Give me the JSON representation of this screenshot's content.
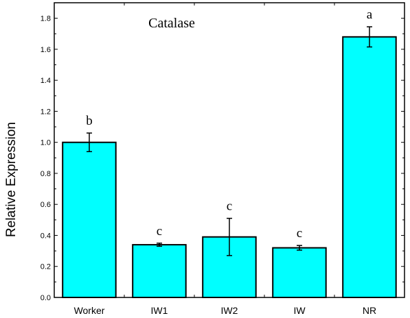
{
  "chart_data": {
    "type": "bar",
    "title": "Catalase",
    "xlabel": "",
    "ylabel": "Relative Expression",
    "ylim": [
      0,
      1.9
    ],
    "yticks": [
      "0.0",
      "0.2",
      "0.4",
      "0.6",
      "0.8",
      "1.0",
      "1.2",
      "1.4",
      "1.6",
      "1.8"
    ],
    "categories": [
      "Worker",
      "IW1",
      "IW2",
      "IW",
      "NR"
    ],
    "values": [
      1.0,
      0.34,
      0.39,
      0.32,
      1.68
    ],
    "errors": [
      0.06,
      0.01,
      0.12,
      0.015,
      0.065
    ],
    "annotations": [
      "b",
      "c",
      "c",
      "c",
      "a"
    ],
    "bar_color": "#00FFFF",
    "grid": false
  }
}
